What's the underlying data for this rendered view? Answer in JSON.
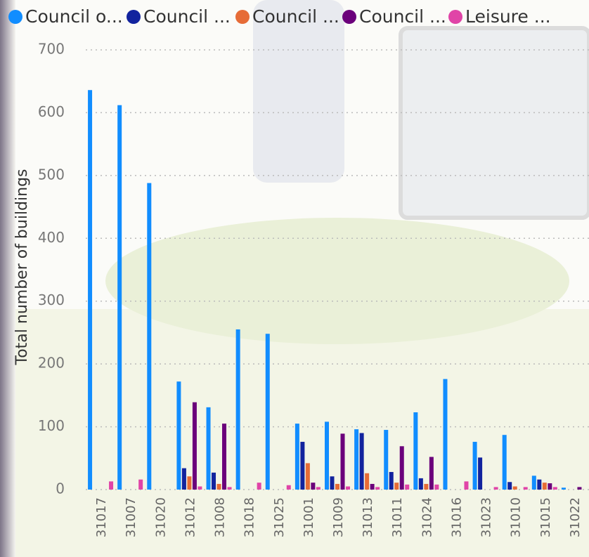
{
  "chart_data": {
    "type": "bar",
    "y_label": "Total number of buildings",
    "categories": [
      "31017",
      "31007",
      "31020",
      "31012",
      "31008",
      "31018",
      "31025",
      "31001",
      "31009",
      "31013",
      "31011",
      "31024",
      "31016",
      "31023",
      "31010",
      "31015",
      "31022"
    ],
    "series": [
      {
        "name": "Council o...",
        "color": "#118DFF",
        "values": [
          636,
          612,
          488,
          172,
          131,
          255,
          248,
          105,
          108,
          96,
          95,
          123,
          176,
          76,
          87,
          22,
          3
        ]
      },
      {
        "name": "Council ...",
        "color": "#12239E",
        "values": [
          0,
          0,
          0,
          34,
          27,
          0,
          0,
          76,
          21,
          90,
          28,
          18,
          0,
          51,
          12,
          16,
          0
        ]
      },
      {
        "name": "Council ...",
        "color": "#E66C37",
        "values": [
          0,
          0,
          0,
          21,
          9,
          0,
          0,
          42,
          9,
          26,
          11,
          9,
          0,
          0,
          5,
          11,
          0
        ]
      },
      {
        "name": "Council ...",
        "color": "#6B007B",
        "values": [
          0,
          0,
          0,
          139,
          105,
          0,
          0,
          11,
          89,
          9,
          69,
          52,
          0,
          0,
          0,
          10,
          4
        ]
      },
      {
        "name": "Leisure ...",
        "color": "#E044A7",
        "values": [
          13,
          16,
          0,
          5,
          4,
          11,
          7,
          4,
          5,
          4,
          8,
          8,
          13,
          4,
          4,
          4,
          0
        ]
      }
    ],
    "ylim": [
      0,
      700
    ],
    "yticks": [
      0,
      100,
      200,
      300,
      400,
      500,
      600,
      700
    ],
    "grid": true
  }
}
